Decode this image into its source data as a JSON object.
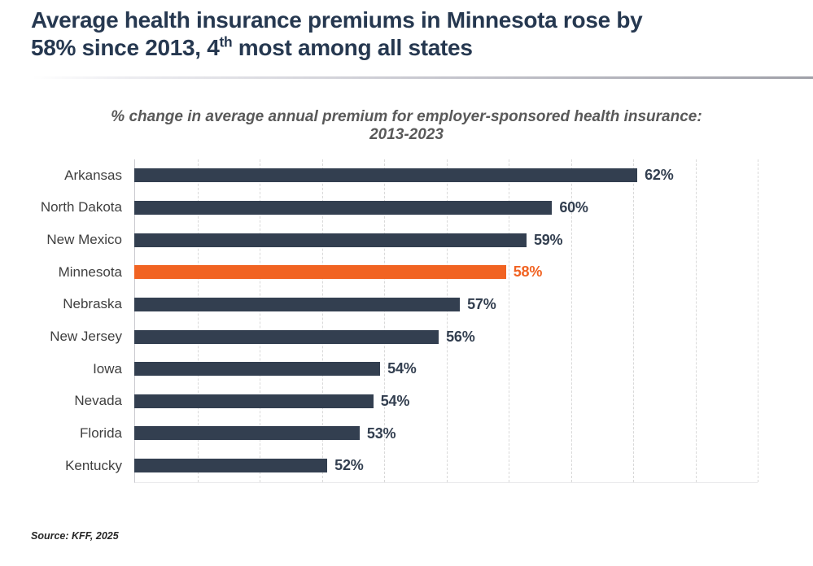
{
  "header": {
    "title_line1": "Average health insurance premiums in Minnesota rose by",
    "title_line2_prefix": "58% since 2013, 4",
    "title_superscript": "th",
    "title_line2_suffix": " most among all states"
  },
  "subtitle": {
    "line1": "% change in average annual premium for employer-sponsored health insurance:",
    "line2": "2013-2023"
  },
  "source": "Source: KFF, 2025",
  "colors": {
    "bar_default": "#333F50",
    "bar_highlight": "#F16322",
    "title": "#263850",
    "subtitle": "#595959",
    "category_label": "#3F3F3F",
    "gridline": "#D9D9D9"
  },
  "chart_data": {
    "type": "bar",
    "orientation": "horizontal",
    "title": "% change in average annual premium for employer-sponsored health insurance: 2013-2023",
    "categories": [
      "Arkansas",
      "North Dakota",
      "New Mexico",
      "Minnesota",
      "Nebraska",
      "New Jersey",
      "Iowa",
      "Nevada",
      "Florida",
      "Kentucky"
    ],
    "values": [
      62,
      60,
      59,
      58,
      57,
      56,
      54,
      54,
      53,
      52
    ],
    "value_labels": [
      "62%",
      "60%",
      "59%",
      "58%",
      "57%",
      "56%",
      "54%",
      "54%",
      "53%",
      "52%"
    ],
    "highlight_category": "Minnesota",
    "highlight_index": 3,
    "bar_end_frac": [
      0.808,
      0.671,
      0.63,
      0.597,
      0.523,
      0.489,
      0.395,
      0.384,
      0.362,
      0.31
    ],
    "axis": {
      "x_tick_labels_shown": false,
      "grid_divisions": 10,
      "gridline_style": "dashed",
      "approx_x_range_pct": [
        46,
        66
      ],
      "grid_step_pct": 2,
      "legend": "none"
    }
  }
}
